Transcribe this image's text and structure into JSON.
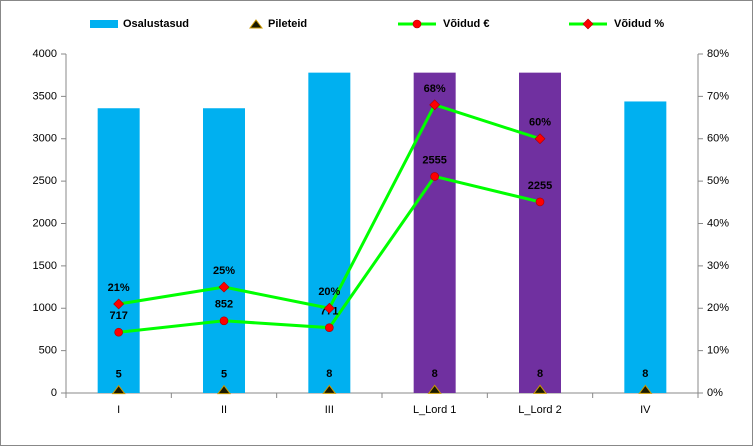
{
  "chart_data": {
    "type": "combo",
    "categories": [
      "I",
      "II",
      "III",
      "L_Lord 1",
      "L_Lord 2",
      "IV"
    ],
    "ylim": [
      0,
      4000
    ],
    "yticks": [
      0,
      500,
      1000,
      1500,
      2000,
      2500,
      3000,
      3500,
      4000
    ],
    "y2lim": [
      0,
      80
    ],
    "y2ticks": [
      {
        "value": 0,
        "label": "0%"
      },
      {
        "value": 10,
        "label": "10%"
      },
      {
        "value": 20,
        "label": "20%"
      },
      {
        "value": 30,
        "label": "30%"
      },
      {
        "value": 40,
        "label": "40%"
      },
      {
        "value": 50,
        "label": "50%"
      },
      {
        "value": 60,
        "label": "60%"
      },
      {
        "value": 70,
        "label": "70%"
      },
      {
        "value": 80,
        "label": "80%"
      }
    ],
    "legend": "top",
    "series": [
      {
        "name": "Osalustasud",
        "type": "bar",
        "color": "#00B0F0",
        "colors": [
          "#00B0F0",
          "#00B0F0",
          "#00B0F0",
          "#7030A0",
          "#7030A0",
          "#00B0F0"
        ],
        "values": [
          3360,
          3360,
          3780,
          3780,
          3780,
          3440
        ]
      },
      {
        "name": "Pileteid",
        "type": "marker",
        "marker": "triangle",
        "color": "#1a1a00",
        "values": [
          5,
          5,
          8,
          8,
          8,
          8
        ]
      },
      {
        "name": "Võidud €",
        "type": "line",
        "marker": "circle",
        "color": "#00FF00",
        "marker_color": "#FF0000",
        "values": [
          717,
          852,
          771,
          2555,
          2255,
          null
        ]
      },
      {
        "name": "Võidud %",
        "type": "line",
        "axis": "y2",
        "marker": "diamond",
        "color": "#00FF00",
        "marker_color": "#FF0000",
        "values": [
          21,
          25,
          20,
          68,
          60,
          null
        ],
        "value_labels": [
          "21%",
          "25%",
          "20%",
          "68%",
          "60%",
          null
        ]
      }
    ]
  }
}
